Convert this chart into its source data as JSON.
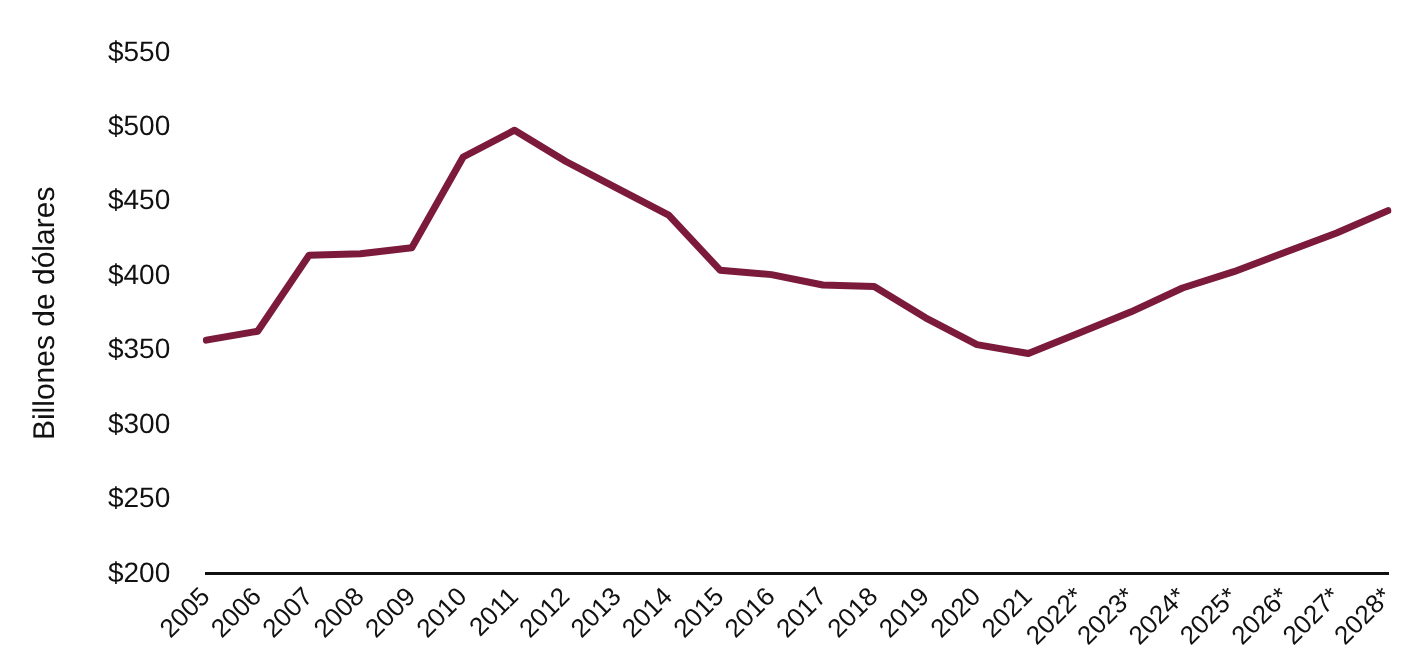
{
  "chart_data": {
    "type": "line",
    "ylabel": "Billones de dólares",
    "categories": [
      "2005",
      "2006",
      "2007",
      "2008",
      "2009",
      "2010",
      "2011",
      "2012",
      "2013",
      "2014",
      "2015",
      "2016",
      "2017",
      "2018",
      "2019",
      "2020",
      "2021",
      "2022*",
      "2023*",
      "2024*",
      "2025*",
      "2026*",
      "2027*",
      "2028*"
    ],
    "series": [
      {
        "color": "#7b1a3a",
        "values": [
          357,
          363,
          414,
          415,
          419,
          480,
          498,
          477,
          459,
          441,
          404,
          401,
          394,
          393,
          372,
          354,
          348,
          362,
          376,
          392,
          403,
          416,
          429,
          444
        ]
      }
    ],
    "ylim": [
      200,
      550
    ],
    "yticks": [
      {
        "value": 200,
        "label": "$200"
      },
      {
        "value": 250,
        "label": "$250"
      },
      {
        "value": 300,
        "label": "$300"
      },
      {
        "value": 350,
        "label": "$350"
      },
      {
        "value": 400,
        "label": "$400"
      },
      {
        "value": 450,
        "label": "$450"
      },
      {
        "value": 500,
        "label": "$500"
      },
      {
        "value": 550,
        "label": "$550"
      }
    ],
    "grid": false,
    "legend": false,
    "marker": "none",
    "line_style": "solid"
  }
}
